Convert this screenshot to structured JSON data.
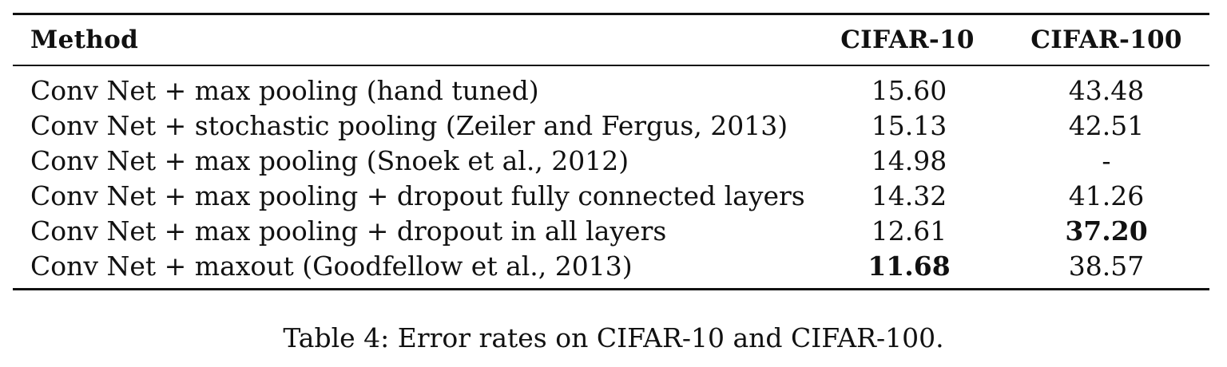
{
  "table": {
    "headers": [
      "Method",
      "CIFAR-10",
      "CIFAR-100"
    ],
    "rows": [
      {
        "method": "Conv Net + max pooling (hand tuned)",
        "cifar10": "15.60",
        "cifar100": "43.48",
        "bold": ""
      },
      {
        "method": "Conv Net + stochastic pooling (Zeiler and Fergus, 2013)",
        "cifar10": "15.13",
        "cifar100": "42.51",
        "bold": ""
      },
      {
        "method": "Conv Net + max pooling (Snoek et al., 2012)",
        "cifar10": "14.98",
        "cifar100": "-",
        "bold": ""
      },
      {
        "method": "Conv Net + max pooling + dropout fully connected layers",
        "cifar10": "14.32",
        "cifar100": "41.26",
        "bold": ""
      },
      {
        "method": "Conv Net + max pooling + dropout in all layers",
        "cifar10": "12.61",
        "cifar100": "37.20",
        "bold": "cifar100"
      },
      {
        "method": "Conv Net + maxout (Goodfellow et al., 2013)",
        "cifar10": "11.68",
        "cifar100": "38.57",
        "bold": "cifar10"
      }
    ]
  },
  "caption": "Table 4: Error rates on CIFAR-10 and CIFAR-100."
}
